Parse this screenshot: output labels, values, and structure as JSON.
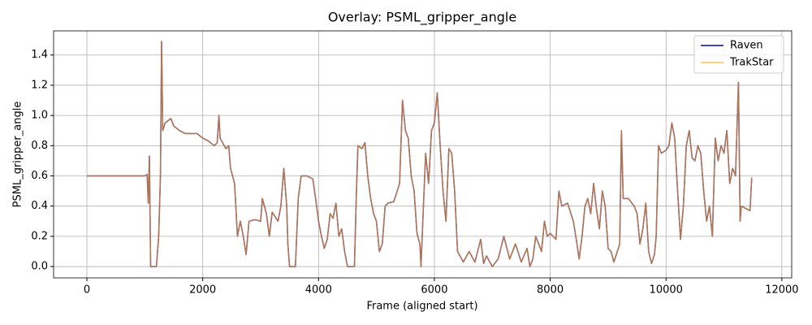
{
  "chart_data": {
    "type": "line",
    "title": "Overlay: PSML_gripper_angle",
    "x_label": "Frame (aligned start)",
    "y_label": "PSML_gripper_angle",
    "x": [
      0,
      1000,
      1040,
      1060,
      1080,
      1100,
      1200,
      1240,
      1270,
      1290,
      1310,
      1350,
      1450,
      1500,
      1600,
      1700,
      1800,
      1900,
      2000,
      2100,
      2200,
      2250,
      2280,
      2300,
      2400,
      2450,
      2480,
      2550,
      2600,
      2650,
      2700,
      2750,
      2800,
      2900,
      3000,
      3030,
      3100,
      3150,
      3200,
      3300,
      3350,
      3400,
      3450,
      3470,
      3500,
      3600,
      3650,
      3700,
      3800,
      3900,
      3950,
      4000,
      4050,
      4100,
      4150,
      4200,
      4250,
      4300,
      4350,
      4400,
      4450,
      4500,
      4620,
      4650,
      4680,
      4750,
      4800,
      4850,
      4900,
      4950,
      5000,
      5050,
      5100,
      5150,
      5200,
      5300,
      5400,
      5450,
      5500,
      5550,
      5600,
      5650,
      5700,
      5750,
      5770,
      5800,
      5850,
      5900,
      5950,
      6000,
      6050,
      6100,
      6150,
      6200,
      6250,
      6300,
      6350,
      6400,
      6500,
      6600,
      6700,
      6800,
      6850,
      6900,
      7000,
      7100,
      7200,
      7300,
      7400,
      7500,
      7600,
      7650,
      7700,
      7750,
      7850,
      7900,
      7950,
      8000,
      8100,
      8150,
      8200,
      8300,
      8400,
      8450,
      8500,
      8550,
      8600,
      8650,
      8700,
      8750,
      8800,
      8850,
      8900,
      8950,
      9000,
      9050,
      9100,
      9200,
      9230,
      9260,
      9350,
      9450,
      9500,
      9550,
      9600,
      9650,
      9700,
      9750,
      9800,
      9830,
      9870,
      9920,
      10000,
      10050,
      10100,
      10150,
      10200,
      10250,
      10300,
      10350,
      10400,
      10450,
      10500,
      10550,
      10600,
      10650,
      10700,
      10750,
      10800,
      10850,
      10900,
      10950,
      11000,
      11050,
      11100,
      11150,
      11200,
      11250,
      11280,
      11300,
      11400,
      11450,
      11480
    ],
    "series": [
      {
        "name": "Raven",
        "color": "#0000ff",
        "opacity": 1,
        "values": [
          0.6,
          0.6,
          0.61,
          0.42,
          0.73,
          0,
          0,
          0.2,
          0.6,
          1.49,
          0.9,
          0.95,
          0.98,
          0.93,
          0.9,
          0.88,
          0.88,
          0.88,
          0.85,
          0.83,
          0.8,
          0.82,
          1.0,
          0.85,
          0.78,
          0.8,
          0.65,
          0.55,
          0.2,
          0.3,
          0.2,
          0.08,
          0.3,
          0.31,
          0.3,
          0.45,
          0.35,
          0.2,
          0.36,
          0.3,
          0.4,
          0.65,
          0.4,
          0.15,
          0,
          0,
          0.45,
          0.6,
          0.6,
          0.58,
          0.45,
          0.3,
          0.2,
          0.12,
          0.18,
          0.35,
          0.32,
          0.42,
          0.2,
          0.25,
          0.1,
          0,
          0,
          0.45,
          0.8,
          0.78,
          0.82,
          0.6,
          0.45,
          0.35,
          0.3,
          0.1,
          0.15,
          0.4,
          0.42,
          0.43,
          0.55,
          1.1,
          0.9,
          0.85,
          0.6,
          0.5,
          0.22,
          0.15,
          0,
          0.3,
          0.75,
          0.55,
          0.9,
          0.95,
          1.15,
          0.8,
          0.5,
          0.3,
          0.78,
          0.75,
          0.5,
          0.1,
          0.03,
          0.1,
          0.03,
          0.18,
          0.02,
          0.07,
          0,
          0.05,
          0.2,
          0.05,
          0.15,
          0.03,
          0.12,
          0,
          0.05,
          0.2,
          0.1,
          0.3,
          0.2,
          0.22,
          0.18,
          0.5,
          0.4,
          0.42,
          0.3,
          0.18,
          0.05,
          0.2,
          0.4,
          0.45,
          0.35,
          0.55,
          0.38,
          0.25,
          0.5,
          0.4,
          0.12,
          0.1,
          0.03,
          0.15,
          0.9,
          0.45,
          0.45,
          0.4,
          0.35,
          0.15,
          0.25,
          0.42,
          0.1,
          0.02,
          0.08,
          0.2,
          0.8,
          0.75,
          0.77,
          0.8,
          0.95,
          0.85,
          0.5,
          0.18,
          0.4,
          0.8,
          0.9,
          0.72,
          0.7,
          0.8,
          0.75,
          0.5,
          0.3,
          0.4,
          0.2,
          0.85,
          0.7,
          0.8,
          0.75,
          0.9,
          0.55,
          0.65,
          0.6,
          1.22,
          0.3,
          0.4,
          0.38,
          0.37,
          0.59
        ]
      },
      {
        "name": "TrakStar",
        "color": "#ffa500",
        "opacity": 0.7,
        "values": [
          0.6,
          0.6,
          0.61,
          0.42,
          0.73,
          0,
          0,
          0.2,
          0.6,
          1.49,
          0.9,
          0.95,
          0.98,
          0.93,
          0.9,
          0.88,
          0.88,
          0.88,
          0.85,
          0.83,
          0.8,
          0.82,
          1.0,
          0.85,
          0.78,
          0.8,
          0.65,
          0.55,
          0.2,
          0.3,
          0.2,
          0.08,
          0.3,
          0.31,
          0.3,
          0.45,
          0.35,
          0.2,
          0.36,
          0.3,
          0.4,
          0.65,
          0.4,
          0.15,
          0,
          0,
          0.45,
          0.6,
          0.6,
          0.58,
          0.45,
          0.3,
          0.2,
          0.12,
          0.18,
          0.35,
          0.32,
          0.42,
          0.2,
          0.25,
          0.1,
          0,
          0,
          0.45,
          0.8,
          0.78,
          0.82,
          0.6,
          0.45,
          0.35,
          0.3,
          0.1,
          0.15,
          0.4,
          0.42,
          0.43,
          0.55,
          1.1,
          0.9,
          0.85,
          0.6,
          0.5,
          0.22,
          0.15,
          0,
          0.3,
          0.75,
          0.55,
          0.9,
          0.95,
          1.15,
          0.8,
          0.5,
          0.3,
          0.78,
          0.75,
          0.5,
          0.1,
          0.03,
          0.1,
          0.03,
          0.18,
          0.02,
          0.07,
          0,
          0.05,
          0.2,
          0.05,
          0.15,
          0.03,
          0.12,
          0,
          0.05,
          0.2,
          0.1,
          0.3,
          0.2,
          0.22,
          0.18,
          0.5,
          0.4,
          0.42,
          0.3,
          0.18,
          0.05,
          0.2,
          0.4,
          0.45,
          0.35,
          0.55,
          0.38,
          0.25,
          0.5,
          0.4,
          0.12,
          0.1,
          0.03,
          0.15,
          0.9,
          0.45,
          0.45,
          0.4,
          0.35,
          0.15,
          0.25,
          0.42,
          0.1,
          0.02,
          0.08,
          0.2,
          0.8,
          0.75,
          0.77,
          0.8,
          0.95,
          0.85,
          0.5,
          0.18,
          0.4,
          0.8,
          0.9,
          0.72,
          0.7,
          0.8,
          0.75,
          0.5,
          0.3,
          0.4,
          0.2,
          0.85,
          0.7,
          0.8,
          0.75,
          0.9,
          0.55,
          0.65,
          0.6,
          1.22,
          0.3,
          0.4,
          0.38,
          0.37,
          0.59
        ]
      }
    ],
    "xlim": [
      -575,
      12170
    ],
    "xticks": [
      0,
      2000,
      4000,
      6000,
      8000,
      10000,
      12000
    ],
    "ylim": [
      -0.075,
      1.56
    ],
    "yticks": [
      {
        "value": 0,
        "label": "0.0"
      },
      {
        "value": 0.2,
        "label": "0.2"
      },
      {
        "value": 0.4,
        "label": "0.4"
      },
      {
        "value": 0.6,
        "label": "0.6"
      },
      {
        "value": 0.8,
        "label": "0.8"
      },
      {
        "value": 1.0,
        "label": "1.0"
      },
      {
        "value": 1.2,
        "label": "1.2"
      },
      {
        "value": 1.4,
        "label": "1.4"
      }
    ],
    "grid": true,
    "legend": "upper right"
  }
}
